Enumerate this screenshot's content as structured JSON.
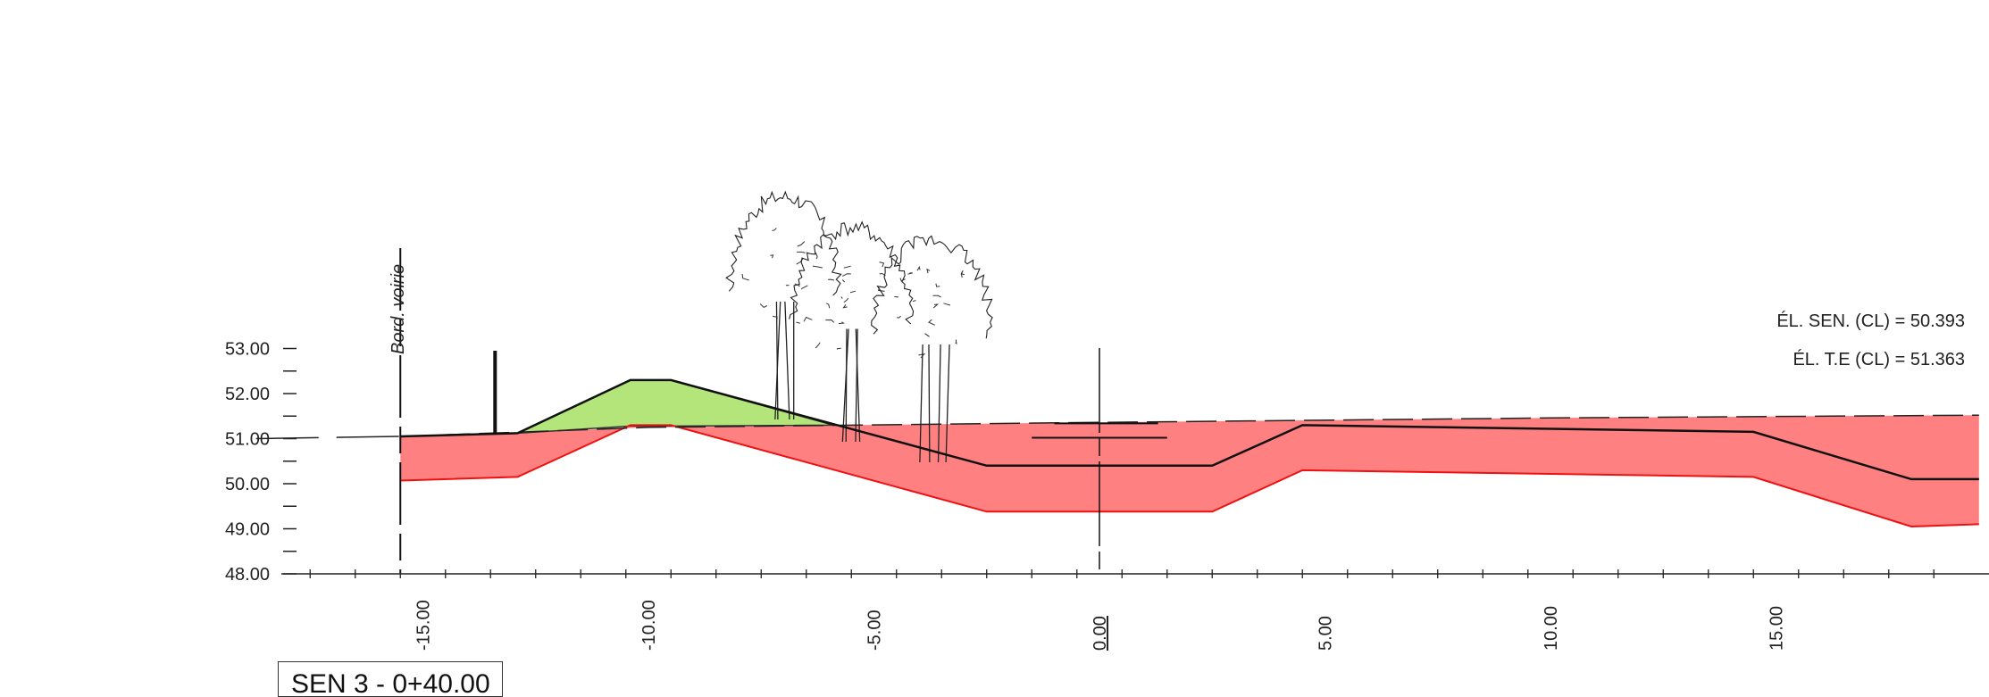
{
  "section_label": "SEN 3 - 0+40.00",
  "road_edge_label": "Bord. voirie",
  "annotations": {
    "trail_elevation": "ÉL. SEN. (CL) = 50.393",
    "natural_ground_elevation": "ÉL. T.E (CL) = 51.363"
  },
  "colors": {
    "excavation_fill": "#ff8080",
    "excavation_line": "#ee1111",
    "embankment_fill": "#b3e57a",
    "profile_line": "#111111"
  },
  "y_axis_labels": [
    "53.00",
    "52.00",
    "51.00",
    "50.00",
    "49.00",
    "48.00"
  ],
  "x_axis_labels": [
    "-15.00",
    "-10.00",
    "-5.00",
    "0.00",
    "5.00",
    "10.00",
    "15.00"
  ],
  "chart_data": {
    "type": "cross-section",
    "x_range": [
      -18.7,
      19.5
    ],
    "y_range": [
      48.0,
      53.0
    ],
    "natural_ground_dashed": [
      [
        -15.5,
        51.05
      ],
      [
        -10.0,
        51.25
      ],
      [
        0.0,
        51.36
      ],
      [
        10.0,
        51.46
      ],
      [
        19.5,
        51.52
      ]
    ],
    "proposed_profile": [
      [
        -15.5,
        51.05
      ],
      [
        -12.9,
        51.12
      ],
      [
        -10.4,
        52.3
      ],
      [
        -9.5,
        52.3
      ],
      [
        -2.5,
        50.4
      ],
      [
        2.5,
        50.4
      ],
      [
        4.5,
        51.3
      ],
      [
        14.5,
        51.15
      ],
      [
        18.0,
        50.1
      ],
      [
        19.5,
        50.1
      ]
    ],
    "subgrade_line": [
      [
        -15.5,
        50.07
      ],
      [
        -12.9,
        50.15
      ],
      [
        -10.4,
        51.3
      ],
      [
        -9.5,
        51.3
      ],
      [
        -2.5,
        49.38
      ],
      [
        2.5,
        49.38
      ],
      [
        4.5,
        50.3
      ],
      [
        14.5,
        50.15
      ],
      [
        18.0,
        49.05
      ],
      [
        19.5,
        49.1
      ]
    ],
    "embankment_region": [
      [
        -12.9,
        51.12
      ],
      [
        -10.4,
        52.3
      ],
      [
        -9.5,
        52.3
      ],
      [
        -5.9,
        51.3
      ],
      [
        -9.5,
        51.28
      ],
      [
        -10.4,
        51.28
      ]
    ],
    "left_ground_line": [
      [
        -18.7,
        51.0
      ],
      [
        -15.5,
        51.05
      ]
    ],
    "road_edge_x": -15.5,
    "post_x": -13.4,
    "post_top_y": 52.95,
    "centerline_x": 0.0,
    "trail_marker": [
      [
        -1.5,
        51.02
      ],
      [
        1.5,
        51.02
      ]
    ],
    "trees_x": [
      -7.0,
      -5.5,
      -3.7
    ]
  }
}
